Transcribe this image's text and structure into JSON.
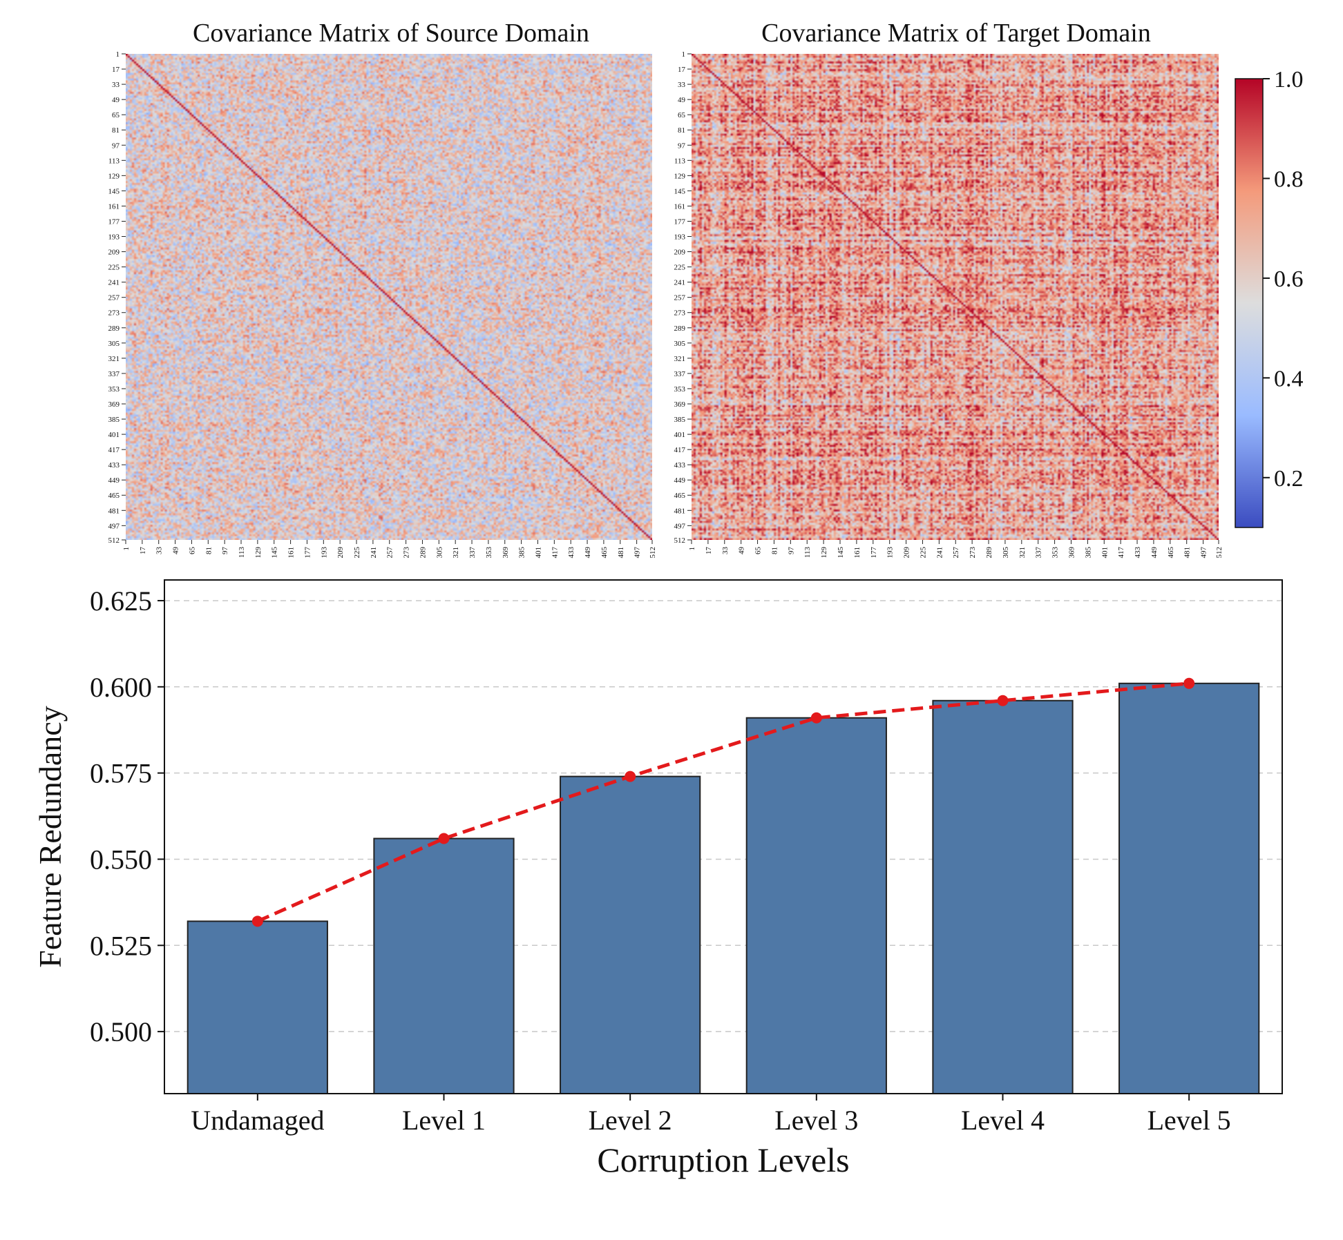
{
  "chart_data": [
    {
      "type": "heatmap",
      "title": "Covariance Matrix of Source Domain",
      "size": 512,
      "tick_labels": [
        "1",
        "17",
        "33",
        "49",
        "65",
        "81",
        "97",
        "113",
        "129",
        "145",
        "161",
        "177",
        "193",
        "209",
        "225",
        "241",
        "257",
        "273",
        "289",
        "305",
        "321",
        "337",
        "353",
        "369",
        "385",
        "401",
        "417",
        "433",
        "449",
        "465",
        "481",
        "497",
        "512"
      ],
      "value_range": [
        0.1,
        1.0
      ],
      "diagonal_value": 1.0,
      "typical_range": [
        0.35,
        0.8
      ]
    },
    {
      "type": "heatmap",
      "title": "Covariance Matrix of Target Domain",
      "size": 512,
      "tick_labels": [
        "1",
        "17",
        "33",
        "49",
        "65",
        "81",
        "97",
        "113",
        "129",
        "145",
        "161",
        "177",
        "193",
        "209",
        "225",
        "241",
        "257",
        "273",
        "289",
        "305",
        "321",
        "337",
        "353",
        "369",
        "385",
        "401",
        "417",
        "433",
        "449",
        "465",
        "481",
        "497",
        "512"
      ],
      "value_range": [
        0.1,
        1.0
      ],
      "diagonal_value": 1.0,
      "typical_range": [
        0.5,
        0.9
      ]
    },
    {
      "type": "colorbar",
      "colormap": "coolwarm",
      "range": [
        0.1,
        1.0
      ],
      "ticks": [
        0.2,
        0.4,
        0.6,
        0.8,
        1.0
      ],
      "tick_labels": [
        "0.2",
        "0.4",
        "0.6",
        "0.8",
        "1.0"
      ],
      "colors": [
        "#3b4cc0",
        "#9abbff",
        "#dddddd",
        "#f49a7b",
        "#b40426"
      ]
    },
    {
      "type": "bar",
      "categories": [
        "Undamaged",
        "Level 1",
        "Level 2",
        "Level 3",
        "Level 4",
        "Level 5"
      ],
      "values": [
        0.532,
        0.556,
        0.574,
        0.591,
        0.596,
        0.601
      ],
      "line_values": [
        0.532,
        0.556,
        0.574,
        0.591,
        0.596,
        0.601
      ],
      "xlabel": "Corruption Levels",
      "ylabel": "Feature Redundancy",
      "ylim": [
        0.482,
        0.631
      ],
      "yticks": [
        0.5,
        0.525,
        0.55,
        0.575,
        0.6,
        0.625
      ],
      "ytick_labels": [
        "0.500",
        "0.525",
        "0.550",
        "0.575",
        "0.600",
        "0.625"
      ],
      "grid": "horizontal dashed",
      "bar_color": "#4f78a6",
      "line_color": "#e31a1c"
    }
  ]
}
